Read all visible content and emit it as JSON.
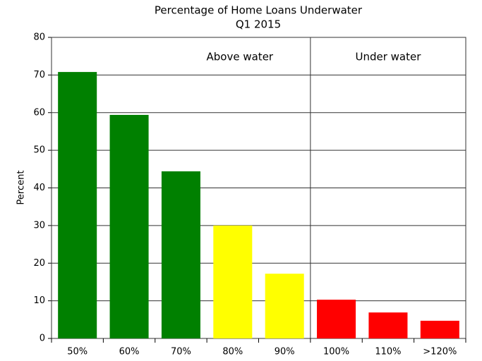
{
  "chart_data": {
    "type": "bar",
    "title": "Percentage of Home Loans Underwater",
    "subtitle": "Q1 2015",
    "y_label": "Percent",
    "categories": [
      "50%",
      "60%",
      "70%",
      "80%",
      "90%",
      "100%",
      "110%",
      ">120%"
    ],
    "values": [
      70.8,
      59.4,
      44.4,
      30.0,
      17.2,
      10.3,
      6.9,
      4.7
    ],
    "colors": [
      "#008000",
      "#008000",
      "#008000",
      "#ffff00",
      "#ffff00",
      "#ff0000",
      "#ff0000",
      "#ff0000"
    ],
    "annotations": [
      "Above water",
      "Under water"
    ],
    "ylim": [
      0,
      80
    ],
    "yticks": [
      0,
      10,
      20,
      30,
      40,
      50,
      60,
      70,
      80
    ],
    "grid": true
  }
}
